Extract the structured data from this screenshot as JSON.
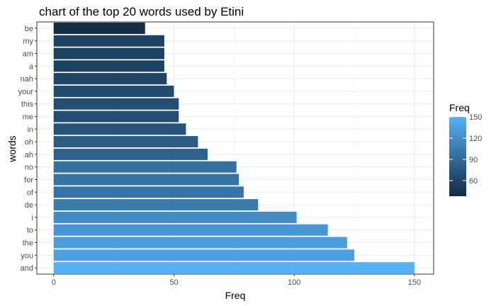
{
  "chart_data": {
    "type": "bar",
    "orientation": "horizontal",
    "title": "chart of the top 20 words used by Etini",
    "xlabel": "Freq",
    "ylabel": "words",
    "categories": [
      "and",
      "you",
      "the",
      "to",
      "i",
      "de",
      "of",
      "for",
      "no",
      "ah",
      "oh",
      "in",
      "me",
      "this",
      "your",
      "nah",
      "a",
      "am",
      "my",
      "be"
    ],
    "values": [
      150,
      125,
      122,
      114,
      101,
      85,
      79,
      77,
      76,
      64,
      60,
      55,
      52,
      52,
      50,
      47,
      46,
      46,
      46,
      38
    ],
    "xlim": [
      -7,
      158
    ],
    "x_ticks": [
      0,
      50,
      100,
      150
    ],
    "grid": true,
    "legend": {
      "title": "Freq",
      "position": "right",
      "ticks": [
        60,
        90,
        120,
        150
      ],
      "range": [
        38,
        150
      ],
      "color_low": "#132B43",
      "color_high": "#56B1F7"
    }
  }
}
